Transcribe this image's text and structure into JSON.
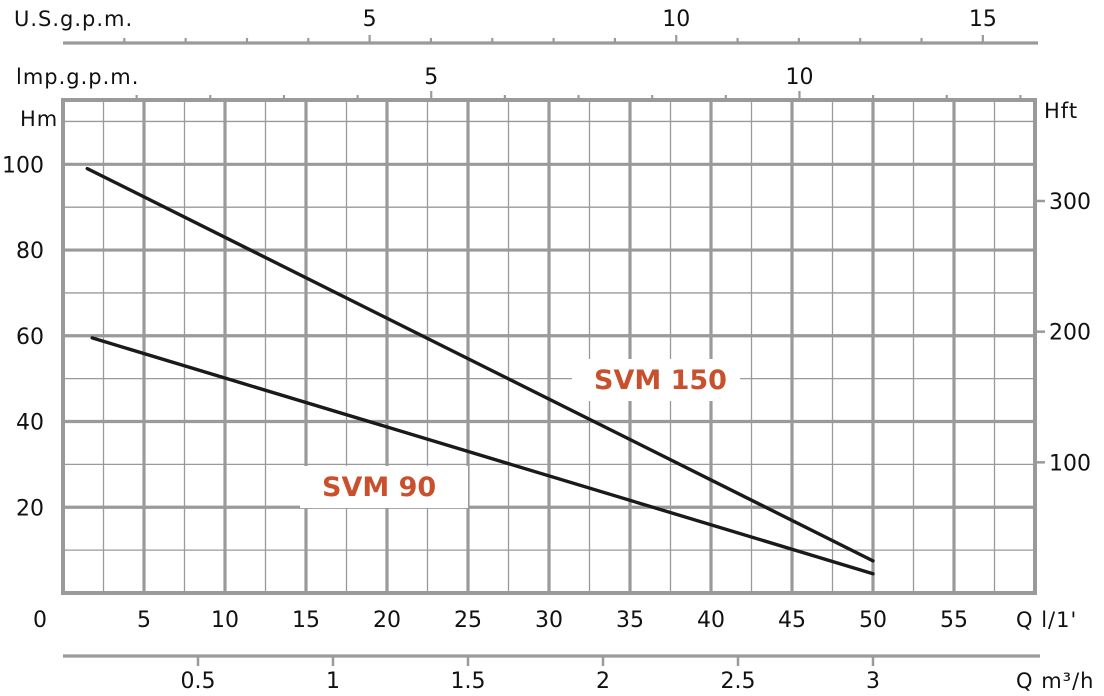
{
  "chart_data": {
    "type": "line",
    "title": "",
    "xlabel": "Q l/1'",
    "ylabel": "Hm",
    "xlim": [
      0,
      60
    ],
    "ylim": [
      0,
      115
    ],
    "x_ticks": [
      0,
      5,
      10,
      15,
      20,
      25,
      30,
      35,
      40,
      45,
      50,
      55
    ],
    "y_ticks": [
      20,
      40,
      60,
      80,
      100
    ],
    "grid": true,
    "series": [
      {
        "name": "SVM 150",
        "x": [
          1.5,
          50
        ],
        "y": [
          99,
          7.5
        ],
        "color": "#1a1a1a"
      },
      {
        "name": "SVM 90",
        "x": [
          1.8,
          50
        ],
        "y": [
          59.5,
          4.5
        ],
        "color": "#1a1a1a"
      }
    ],
    "secondary_axes": {
      "right": {
        "label": "Hft",
        "ticks": [
          100,
          200,
          300
        ]
      },
      "top_us": {
        "label": "U.S.g.p.m.",
        "ticks": [
          5,
          10,
          15
        ]
      },
      "top_imp": {
        "label": "lmp.g.p.m.",
        "ticks": [
          5,
          10
        ]
      },
      "bottom_m3": {
        "label": "Q m³/h",
        "ticks": [
          "0.5",
          "1",
          "1.5",
          "2",
          "2.5",
          "3"
        ]
      }
    },
    "label_color": "#c8502d",
    "grid_color": "#9a9a9a"
  }
}
